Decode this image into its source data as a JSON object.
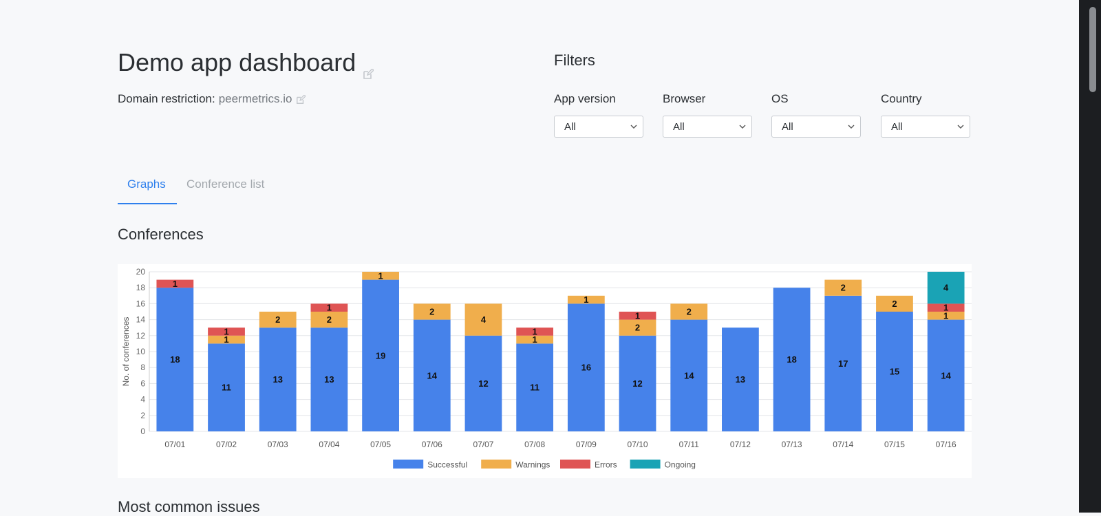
{
  "header": {
    "title": "Demo app dashboard",
    "domain_label": "Domain restriction:",
    "domain_value": "peermetrics.io"
  },
  "filters": {
    "title": "Filters",
    "items": [
      {
        "label": "App version",
        "value": "All"
      },
      {
        "label": "Browser",
        "value": "All"
      },
      {
        "label": "OS",
        "value": "All"
      },
      {
        "label": "Country",
        "value": "All"
      }
    ]
  },
  "tabs": [
    {
      "label": "Graphs",
      "active": true
    },
    {
      "label": "Conference list",
      "active": false
    }
  ],
  "sections": {
    "conferences": "Conferences",
    "issues": "Most common issues"
  },
  "colors": {
    "Successful": "#4682ea",
    "Warnings": "#f0ae4c",
    "Errors": "#df5454",
    "Ongoing": "#1aa3b5",
    "accent": "#2f80ed"
  },
  "chart_data": {
    "type": "bar",
    "stacked": true,
    "ylabel": "No. of conferences",
    "ylim": [
      0,
      20
    ],
    "yticks": [
      0,
      2,
      4,
      6,
      8,
      10,
      12,
      14,
      16,
      18,
      20
    ],
    "grid": true,
    "legend_position": "bottom",
    "categories": [
      "07/01",
      "07/02",
      "07/03",
      "07/04",
      "07/05",
      "07/06",
      "07/07",
      "07/08",
      "07/09",
      "07/10",
      "07/11",
      "07/12",
      "07/13",
      "07/14",
      "07/15",
      "07/16"
    ],
    "series": [
      {
        "name": "Successful",
        "values": [
          18,
          11,
          13,
          13,
          19,
          14,
          12,
          11,
          16,
          12,
          14,
          13,
          18,
          17,
          15,
          14
        ]
      },
      {
        "name": "Warnings",
        "values": [
          0,
          1,
          2,
          2,
          1,
          2,
          4,
          1,
          1,
          2,
          2,
          0,
          0,
          2,
          2,
          1
        ]
      },
      {
        "name": "Errors",
        "values": [
          1,
          1,
          0,
          1,
          0,
          0,
          0,
          1,
          0,
          1,
          0,
          0,
          0,
          0,
          0,
          1
        ]
      },
      {
        "name": "Ongoing",
        "values": [
          0,
          0,
          0,
          0,
          0,
          0,
          0,
          0,
          0,
          0,
          0,
          0,
          0,
          0,
          0,
          4
        ]
      }
    ]
  }
}
